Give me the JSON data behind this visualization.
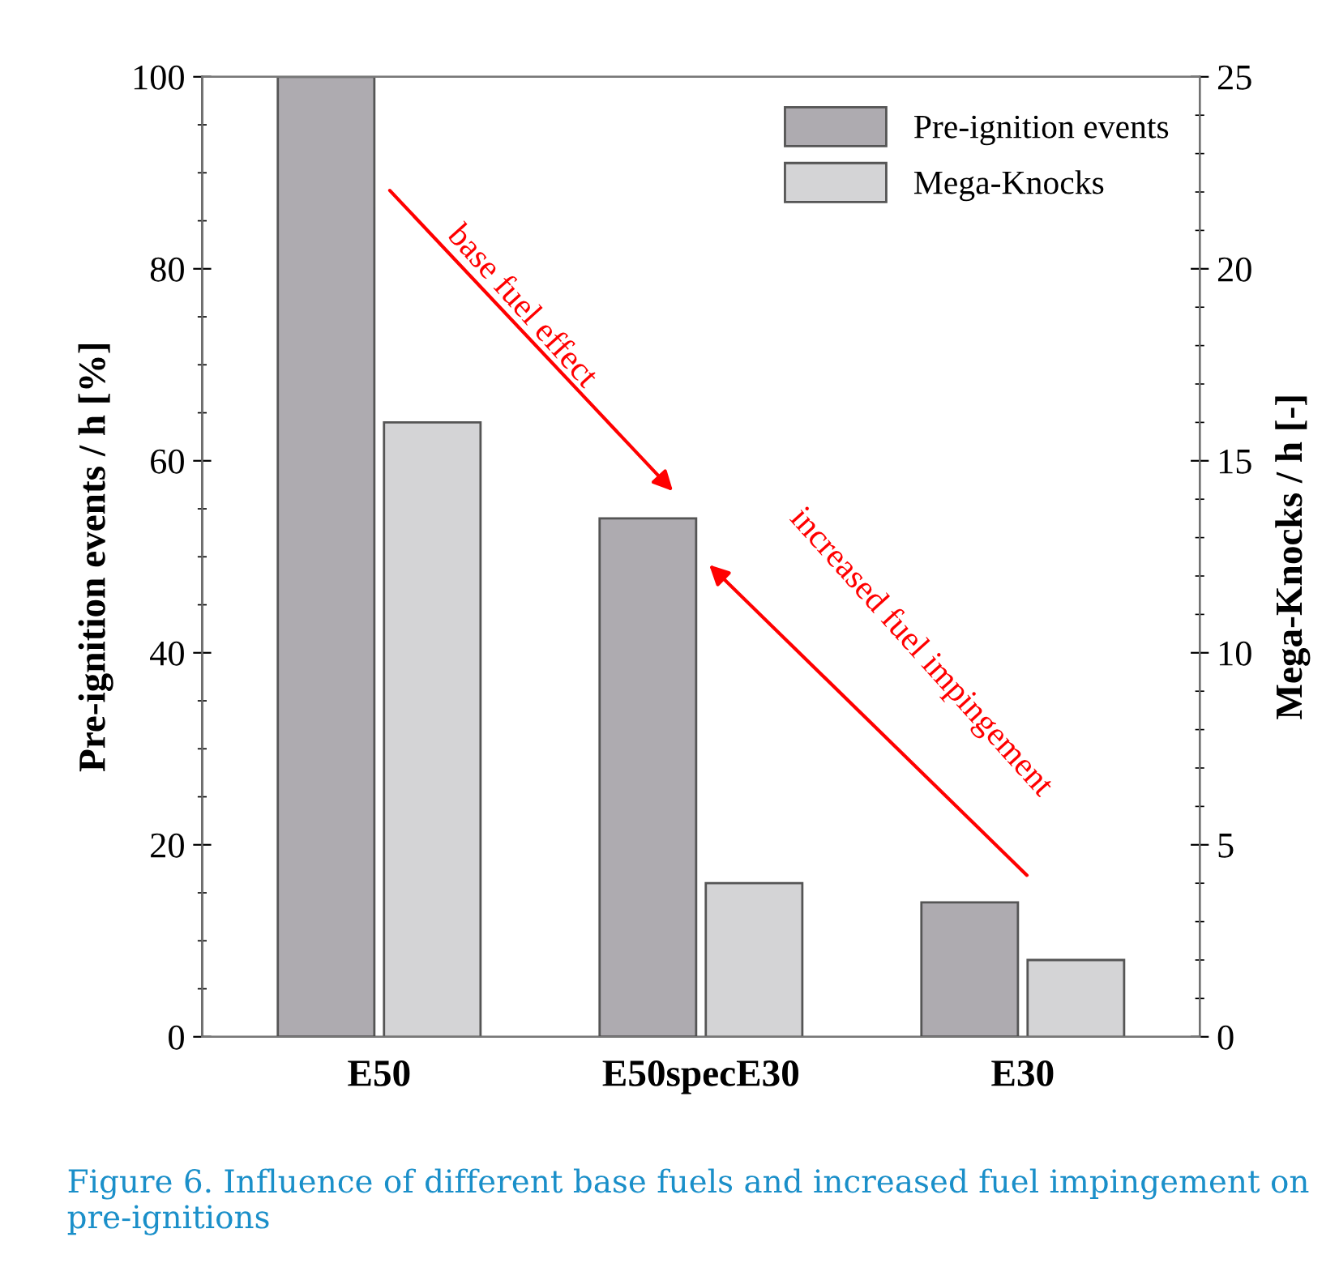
{
  "chart_data": {
    "type": "bar",
    "ylabel": "Pre-ignition events / h [%]",
    "y2label": "Mega-Knocks / h [-]",
    "categories": [
      "E50",
      "E50specE30",
      "E30"
    ],
    "series": [
      {
        "name": "Pre-ignition events",
        "color": "#aeabb0",
        "values": [
          100,
          54,
          14
        ]
      },
      {
        "name": "Mega-Knocks",
        "color": "#d4d4d6",
        "values": [
          16,
          4,
          2
        ],
        "axis": "y2"
      }
    ],
    "ylim": [
      0,
      100
    ],
    "yticks": [
      0,
      20,
      40,
      60,
      80,
      100
    ],
    "y2lim": [
      0,
      25
    ],
    "y2ticks": [
      0,
      5,
      10,
      15,
      20,
      25
    ],
    "legend": "top right",
    "grid": false,
    "annotations": [
      "base fuel effect",
      "increased fuel impingement",
      "Figure 6. Influence of different base fuels and increased fuel impingement on pre-ignitions"
    ]
  }
}
